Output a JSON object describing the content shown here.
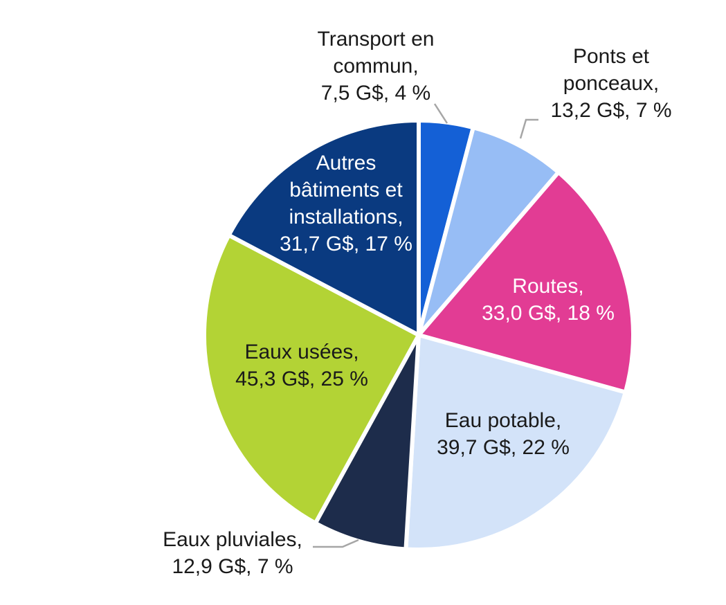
{
  "chart_data": {
    "type": "pie",
    "title": "",
    "unit": "G$",
    "slices": [
      {
        "name": "Transport en commun",
        "value": 7.5,
        "percent": 4,
        "label_lines": [
          "Transport en",
          "commun,",
          "7,5 G$, 4 %"
        ],
        "color": "#1460D6",
        "text_color": "#1a1a1a",
        "label_position": "outside-top"
      },
      {
        "name": "Ponts et ponceaux",
        "value": 13.2,
        "percent": 7,
        "label_lines": [
          "Ponts et",
          "ponceaux,",
          "13,2 G$, 7 %"
        ],
        "color": "#97BDF5",
        "text_color": "#1a1a1a",
        "label_position": "outside-top-right"
      },
      {
        "name": "Routes",
        "value": 33.0,
        "percent": 18,
        "label_lines": [
          "Routes,",
          "33,0 G$, 18 %"
        ],
        "color": "#E23C94",
        "text_color": "#ffffff",
        "label_position": "inside"
      },
      {
        "name": "Eau potable",
        "value": 39.7,
        "percent": 22,
        "label_lines": [
          "Eau potable,",
          "39,7 G$, 22 %"
        ],
        "color": "#D3E3F9",
        "text_color": "#1a1a1a",
        "label_position": "inside"
      },
      {
        "name": "Eaux pluviales",
        "value": 12.9,
        "percent": 7,
        "label_lines": [
          "Eaux pluviales,",
          "12,9 G$, 7 %"
        ],
        "color": "#1D2C4B",
        "text_color": "#1a1a1a",
        "label_position": "outside-bottom-left"
      },
      {
        "name": "Eaux usées",
        "value": 45.3,
        "percent": 25,
        "label_lines": [
          "Eaux usées,",
          "45,3 G$, 25 %"
        ],
        "color": "#B3D335",
        "text_color": "#1a1a1a",
        "label_position": "inside"
      },
      {
        "name": "Autres bâtiments et installations",
        "value": 31.7,
        "percent": 17,
        "label_lines": [
          "Autres",
          "bâtiments et",
          "installations,",
          "31,7 G$, 17 %"
        ],
        "color": "#0A3A80",
        "text_color": "#ffffff",
        "label_position": "inside"
      }
    ],
    "legend": "none",
    "leader_line_color": "#a6a6a6"
  }
}
